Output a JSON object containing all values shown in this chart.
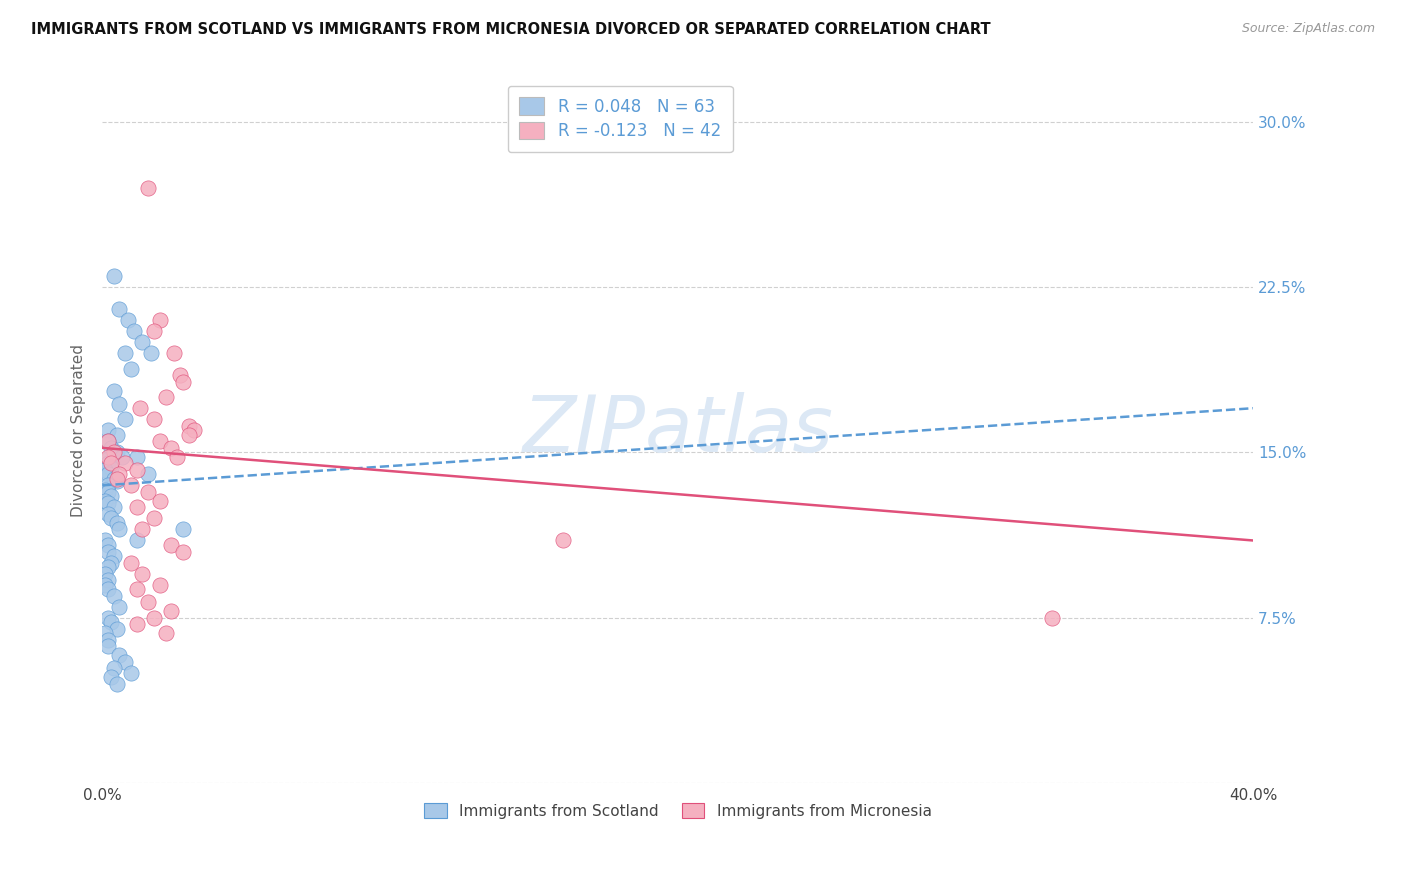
{
  "title": "IMMIGRANTS FROM SCOTLAND VS IMMIGRANTS FROM MICRONESIA DIVORCED OR SEPARATED CORRELATION CHART",
  "source": "Source: ZipAtlas.com",
  "ylabel": "Divorced or Separated",
  "xlim": [
    0.0,
    0.4
  ],
  "ylim": [
    0.0,
    0.32
  ],
  "ytick_positions": [
    0.0,
    0.075,
    0.15,
    0.225,
    0.3
  ],
  "ytick_labels_right": [
    "",
    "7.5%",
    "15.0%",
    "22.5%",
    "30.0%"
  ],
  "xtick_positions": [
    0.0,
    0.1,
    0.2,
    0.3,
    0.4
  ],
  "xtick_labels": [
    "0.0%",
    "",
    "",
    "",
    "40.0%"
  ],
  "color_scotland": "#a8c8e8",
  "color_micronesia": "#f5b0c0",
  "line_scotland_color": "#5b9bd5",
  "line_micronesia_color": "#e0507a",
  "watermark_text": "ZIPatlas",
  "watermark_color": "#dce8f5",
  "grid_color": "#d0d0d0",
  "legend_label1": "R = 0.048   N = 63",
  "legend_label2": "R = -0.123   N = 42",
  "legend1": "Immigrants from Scotland",
  "legend2": "Immigrants from Micronesia",
  "scotland_x": [
    0.004,
    0.006,
    0.009,
    0.011,
    0.008,
    0.01,
    0.014,
    0.017,
    0.004,
    0.006,
    0.008,
    0.002,
    0.005,
    0.002,
    0.003,
    0.005,
    0.007,
    0.002,
    0.002,
    0.003,
    0.001,
    0.002,
    0.004,
    0.005,
    0.002,
    0.001,
    0.002,
    0.003,
    0.001,
    0.002,
    0.004,
    0.002,
    0.003,
    0.005,
    0.006,
    0.012,
    0.016,
    0.001,
    0.002,
    0.002,
    0.004,
    0.003,
    0.002,
    0.001,
    0.002,
    0.001,
    0.002,
    0.004,
    0.006,
    0.002,
    0.003,
    0.005,
    0.001,
    0.002,
    0.002,
    0.012,
    0.028,
    0.006,
    0.008,
    0.004,
    0.01,
    0.003,
    0.005
  ],
  "scotland_y": [
    0.23,
    0.215,
    0.21,
    0.205,
    0.195,
    0.188,
    0.2,
    0.195,
    0.178,
    0.172,
    0.165,
    0.16,
    0.158,
    0.155,
    0.152,
    0.15,
    0.148,
    0.147,
    0.145,
    0.143,
    0.142,
    0.14,
    0.138,
    0.137,
    0.135,
    0.133,
    0.132,
    0.13,
    0.128,
    0.127,
    0.125,
    0.122,
    0.12,
    0.118,
    0.115,
    0.148,
    0.14,
    0.11,
    0.108,
    0.105,
    0.103,
    0.1,
    0.098,
    0.095,
    0.092,
    0.09,
    0.088,
    0.085,
    0.08,
    0.075,
    0.073,
    0.07,
    0.068,
    0.065,
    0.062,
    0.11,
    0.115,
    0.058,
    0.055,
    0.052,
    0.05,
    0.048,
    0.045
  ],
  "micronesia_x": [
    0.016,
    0.02,
    0.018,
    0.025,
    0.027,
    0.028,
    0.022,
    0.013,
    0.018,
    0.03,
    0.032,
    0.03,
    0.02,
    0.024,
    0.026,
    0.008,
    0.012,
    0.002,
    0.004,
    0.002,
    0.003,
    0.006,
    0.005,
    0.01,
    0.016,
    0.02,
    0.012,
    0.018,
    0.014,
    0.024,
    0.028,
    0.01,
    0.014,
    0.02,
    0.012,
    0.016,
    0.024,
    0.018,
    0.012,
    0.022,
    0.33,
    0.16
  ],
  "micronesia_y": [
    0.27,
    0.21,
    0.205,
    0.195,
    0.185,
    0.182,
    0.175,
    0.17,
    0.165,
    0.162,
    0.16,
    0.158,
    0.155,
    0.152,
    0.148,
    0.145,
    0.142,
    0.155,
    0.15,
    0.148,
    0.145,
    0.14,
    0.138,
    0.135,
    0.132,
    0.128,
    0.125,
    0.12,
    0.115,
    0.108,
    0.105,
    0.1,
    0.095,
    0.09,
    0.088,
    0.082,
    0.078,
    0.075,
    0.072,
    0.068,
    0.075,
    0.11
  ],
  "scot_trendline_x0": 0.0,
  "scot_trendline_y0": 0.135,
  "scot_trendline_x1": 0.4,
  "scot_trendline_y1": 0.17,
  "micr_trendline_x0": 0.0,
  "micr_trendline_y0": 0.152,
  "micr_trendline_x1": 0.4,
  "micr_trendline_y1": 0.11
}
